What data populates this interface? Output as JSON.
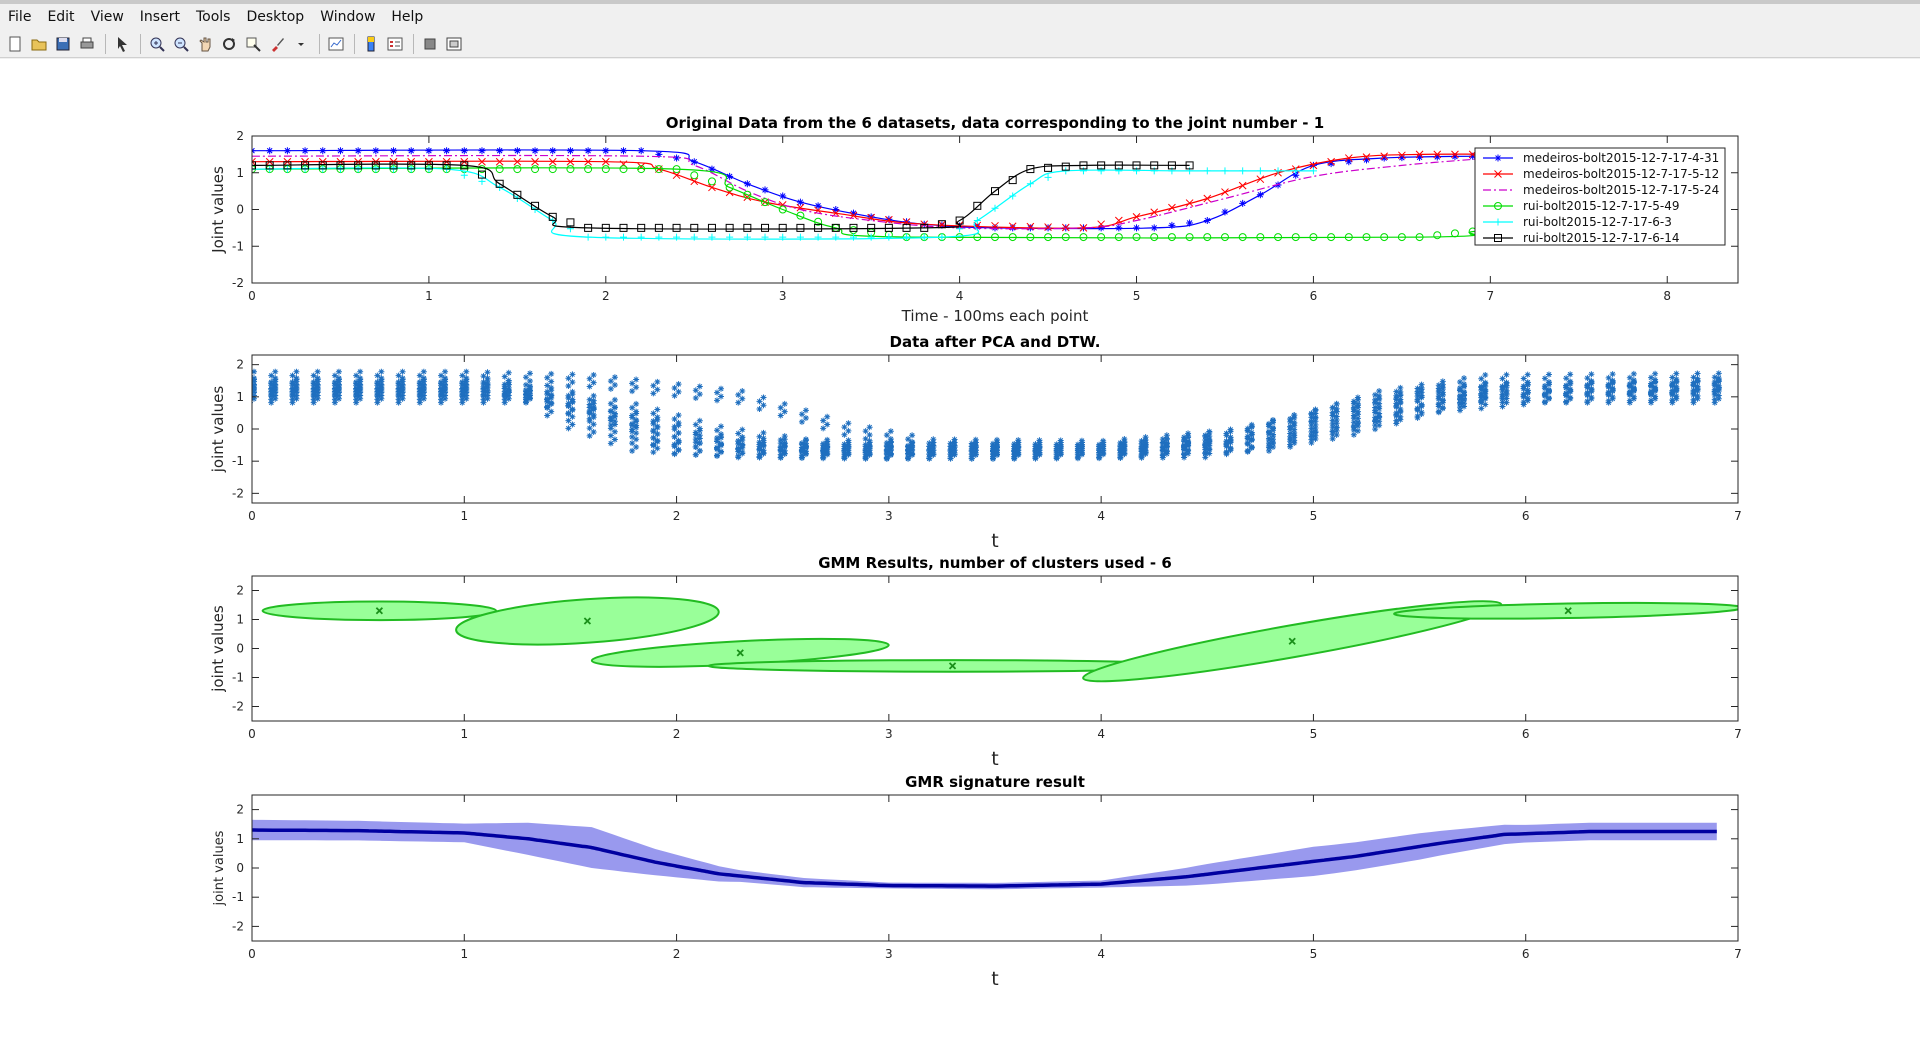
{
  "menu": [
    "File",
    "Edit",
    "View",
    "Insert",
    "Tools",
    "Desktop",
    "Window",
    "Help"
  ],
  "toolbar_icons": [
    "new-figure-icon",
    "open-file-icon",
    "save-icon",
    "print-icon",
    "|",
    "pointer-icon",
    "|",
    "zoom-in-icon",
    "zoom-out-icon",
    "pan-icon",
    "rotate-icon",
    "data-cursor-icon",
    "brush-icon",
    "brush-dropdown-icon",
    "|",
    "link-plot-icon",
    "|",
    "colorbar-icon",
    "legend-icon",
    "|",
    "hide-plot-tools-icon",
    "show-plot-tools-icon"
  ],
  "chart_data": [
    {
      "type": "line",
      "title": "Original Data from the 6 datasets, data corresponding to the joint number -  1",
      "xlabel": "Time - 100ms each point",
      "ylabel": "Joint values",
      "xlim": [
        0,
        8.4
      ],
      "ylim": [
        -2,
        2
      ],
      "xticks": [
        0,
        1,
        2,
        3,
        4,
        5,
        6,
        7,
        8
      ],
      "yticks": [
        -2,
        -1,
        0,
        1,
        2
      ],
      "grid": false,
      "legend": "top-right",
      "series": [
        {
          "name": "medeiros-bolt2015-12-7-17-4-31",
          "color": "#0000ff",
          "marker": "asterisk",
          "dash": "solid",
          "points": [
            [
              0,
              1.6
            ],
            [
              2.2,
              1.6
            ],
            [
              2.5,
              1.3
            ],
            [
              2.8,
              0.7
            ],
            [
              3.1,
              0.2
            ],
            [
              3.5,
              -0.2
            ],
            [
              3.8,
              -0.4
            ],
            [
              4.2,
              -0.5
            ],
            [
              5.1,
              -0.5
            ],
            [
              5.4,
              -0.3
            ],
            [
              5.7,
              0.4
            ],
            [
              6.0,
              1.2
            ],
            [
              6.4,
              1.4
            ],
            [
              6.9,
              1.45
            ]
          ]
        },
        {
          "name": "medeiros-bolt2015-12-7-17-5-12",
          "color": "#ff0000",
          "marker": "x",
          "dash": "solid",
          "points": [
            [
              0,
              1.3
            ],
            [
              2.0,
              1.3
            ],
            [
              2.3,
              1.1
            ],
            [
              2.6,
              0.6
            ],
            [
              2.9,
              0.2
            ],
            [
              3.3,
              -0.1
            ],
            [
              3.8,
              -0.4
            ],
            [
              4.7,
              -0.5
            ],
            [
              5.0,
              -0.2
            ],
            [
              5.4,
              0.3
            ],
            [
              5.8,
              1.0
            ],
            [
              6.2,
              1.4
            ],
            [
              6.6,
              1.5
            ],
            [
              7.3,
              1.5
            ]
          ]
        },
        {
          "name": "medeiros-bolt2015-12-7-17-5-24",
          "color": "#cc00cc",
          "marker": "none",
          "dash": "dashdot",
          "points": [
            [
              0,
              1.45
            ],
            [
              2.2,
              1.45
            ],
            [
              2.5,
              1.2
            ],
            [
              2.8,
              0.5
            ],
            [
              3.1,
              0.0
            ],
            [
              3.5,
              -0.3
            ],
            [
              4.0,
              -0.5
            ],
            [
              4.7,
              -0.5
            ],
            [
              5.0,
              -0.3
            ],
            [
              5.5,
              0.3
            ],
            [
              6.0,
              0.9
            ],
            [
              6.5,
              1.2
            ],
            [
              7.0,
              1.4
            ]
          ]
        },
        {
          "name": "rui-bolt2015-12-7-17-5-49",
          "color": "#00dd00",
          "marker": "circle",
          "dash": "solid",
          "points": [
            [
              0,
              1.1
            ],
            [
              2.4,
              1.1
            ],
            [
              2.7,
              0.6
            ],
            [
              3.0,
              0.0
            ],
            [
              3.3,
              -0.5
            ],
            [
              3.7,
              -0.75
            ],
            [
              6.6,
              -0.75
            ],
            [
              6.9,
              -0.6
            ],
            [
              7.2,
              -0.4
            ]
          ]
        },
        {
          "name": "rui-bolt2015-12-7-17-6-3",
          "color": "#00ffff",
          "marker": "plus",
          "dash": "solid",
          "points": [
            [
              0,
              1.1
            ],
            [
              1.1,
              1.1
            ],
            [
              1.4,
              0.6
            ],
            [
              1.7,
              -0.3
            ],
            [
              1.9,
              -0.75
            ],
            [
              3.9,
              -0.75
            ],
            [
              4.1,
              -0.3
            ],
            [
              4.4,
              0.7
            ],
            [
              4.6,
              1.05
            ],
            [
              5.3,
              1.05
            ],
            [
              6.0,
              1.05
            ]
          ]
        },
        {
          "name": "rui-bolt2015-12-7-17-6-14",
          "color": "#000000",
          "marker": "square",
          "dash": "solid",
          "points": [
            [
              0,
              1.2
            ],
            [
              1.2,
              1.2
            ],
            [
              1.4,
              0.7
            ],
            [
              1.7,
              -0.2
            ],
            [
              1.9,
              -0.5
            ],
            [
              3.8,
              -0.5
            ],
            [
              4.0,
              -0.3
            ],
            [
              4.2,
              0.5
            ],
            [
              4.4,
              1.1
            ],
            [
              4.7,
              1.2
            ],
            [
              5.3,
              1.2
            ]
          ]
        }
      ]
    },
    {
      "type": "scatter",
      "title": "Data after PCA and DTW.",
      "xlabel": "t",
      "ylabel": "joint values",
      "xlim": [
        0,
        7
      ],
      "ylim": [
        -2.3,
        2.3
      ],
      "xticks": [
        0,
        1,
        2,
        3,
        4,
        5,
        6,
        7
      ],
      "yticks": [
        -2,
        -1,
        0,
        1,
        2
      ],
      "grid": false,
      "marker": "asterisk",
      "color": "#1f6fbf",
      "profiles": [
        {
          "points": [
            [
              0,
              1.6
            ],
            [
              1.0,
              1.6
            ],
            [
              1.6,
              1.5
            ],
            [
              2.3,
              1.0
            ],
            [
              2.8,
              0.0
            ],
            [
              3.2,
              -0.5
            ],
            [
              4.0,
              -0.55
            ],
            [
              4.6,
              -0.2
            ],
            [
              5.0,
              0.4
            ],
            [
              5.3,
              1.0
            ],
            [
              5.8,
              1.5
            ],
            [
              6.9,
              1.55
            ]
          ]
        },
        {
          "points": [
            [
              0,
              1.4
            ],
            [
              1.1,
              1.4
            ],
            [
              1.5,
              0.9
            ],
            [
              1.9,
              0.1
            ],
            [
              2.2,
              -0.4
            ],
            [
              2.8,
              -0.6
            ],
            [
              4.0,
              -0.6
            ],
            [
              4.5,
              -0.4
            ],
            [
              5.0,
              0.3
            ],
            [
              5.6,
              1.2
            ],
            [
              6.9,
              1.4
            ]
          ]
        },
        {
          "points": [
            [
              0,
              1.2
            ],
            [
              1.2,
              1.2
            ],
            [
              1.6,
              0.5
            ],
            [
              2.0,
              -0.3
            ],
            [
              2.4,
              -0.6
            ],
            [
              3.0,
              -0.7
            ],
            [
              4.2,
              -0.65
            ],
            [
              4.7,
              -0.5
            ],
            [
              5.1,
              0.1
            ],
            [
              5.5,
              0.8
            ],
            [
              6.0,
              1.2
            ],
            [
              6.9,
              1.3
            ]
          ]
        },
        {
          "points": [
            [
              0,
              1.1
            ],
            [
              1.3,
              1.1
            ],
            [
              1.7,
              0.2
            ],
            [
              2.0,
              -0.6
            ],
            [
              2.5,
              -0.7
            ],
            [
              3.5,
              -0.75
            ],
            [
              4.5,
              -0.7
            ],
            [
              4.9,
              -0.3
            ],
            [
              5.3,
              0.3
            ],
            [
              5.8,
              1.0
            ],
            [
              6.9,
              1.1
            ]
          ]
        },
        {
          "points": [
            [
              0,
              1.0
            ],
            [
              1.3,
              1.0
            ],
            [
              1.5,
              0.2
            ],
            [
              1.8,
              -0.5
            ],
            [
              2.3,
              -0.7
            ],
            [
              3.0,
              -0.75
            ],
            [
              4.1,
              -0.7
            ],
            [
              4.8,
              -0.5
            ],
            [
              5.2,
              0.0
            ],
            [
              5.6,
              0.7
            ],
            [
              6.1,
              1.0
            ],
            [
              6.9,
              1.0
            ]
          ]
        },
        {
          "points": [
            [
              0,
              1.3
            ],
            [
              1.0,
              1.3
            ],
            [
              1.4,
              1.1
            ],
            [
              1.8,
              0.6
            ],
            [
              2.2,
              -0.1
            ],
            [
              2.6,
              -0.5
            ],
            [
              3.2,
              -0.6
            ],
            [
              4.2,
              -0.6
            ],
            [
              4.7,
              -0.1
            ],
            [
              5.1,
              0.6
            ],
            [
              5.5,
              1.1
            ],
            [
              6.9,
              1.35
            ]
          ]
        }
      ],
      "n_samples": 70
    },
    {
      "type": "ellipses",
      "title": "GMM Results, number of clusters used -  6",
      "xlabel": "t",
      "ylabel": "joint values",
      "xlim": [
        0,
        7
      ],
      "ylim": [
        -2.5,
        2.5
      ],
      "xticks": [
        0,
        1,
        2,
        3,
        4,
        5,
        6,
        7
      ],
      "yticks": [
        -2,
        -1,
        0,
        1,
        2
      ],
      "grid": false,
      "fill": "#99ff99",
      "stroke": "#22bb22",
      "clusters": [
        {
          "mean": [
            0.6,
            1.3
          ],
          "rx": 0.55,
          "ry": 0.32,
          "angle": 0
        },
        {
          "mean": [
            1.58,
            0.95
          ],
          "rx": 0.62,
          "ry": 0.75,
          "angle": -4
        },
        {
          "mean": [
            2.3,
            -0.15
          ],
          "rx": 0.7,
          "ry": 0.4,
          "angle": -3
        },
        {
          "mean": [
            3.3,
            -0.6
          ],
          "rx": 1.15,
          "ry": 0.2,
          "angle": 0
        },
        {
          "mean": [
            4.9,
            0.25
          ],
          "rx": 1.0,
          "ry": 0.55,
          "angle": -10
        },
        {
          "mean": [
            6.2,
            1.3
          ],
          "rx": 0.82,
          "ry": 0.25,
          "angle": -1
        }
      ]
    },
    {
      "type": "area",
      "title": "GMR signature result",
      "xlabel": "t",
      "ylabel": "joint values",
      "xlim": [
        0,
        7
      ],
      "ylim": [
        -2.5,
        2.5
      ],
      "xticks": [
        0,
        1,
        2,
        3,
        4,
        5,
        6,
        7
      ],
      "yticks": [
        -2,
        -1,
        0,
        1,
        2
      ],
      "grid": false,
      "line_color": "#0000a0",
      "band_color": "#9999ee",
      "mean": [
        [
          0,
          1.3
        ],
        [
          0.5,
          1.28
        ],
        [
          1.0,
          1.2
        ],
        [
          1.3,
          1.0
        ],
        [
          1.6,
          0.7
        ],
        [
          1.9,
          0.2
        ],
        [
          2.2,
          -0.2
        ],
        [
          2.6,
          -0.5
        ],
        [
          3.0,
          -0.6
        ],
        [
          3.5,
          -0.62
        ],
        [
          4.0,
          -0.55
        ],
        [
          4.4,
          -0.3
        ],
        [
          4.8,
          0.05
        ],
        [
          5.2,
          0.4
        ],
        [
          5.6,
          0.85
        ],
        [
          5.9,
          1.15
        ],
        [
          6.3,
          1.25
        ],
        [
          6.9,
          1.25
        ]
      ],
      "band": [
        [
          0,
          0.35
        ],
        [
          1.0,
          0.32
        ],
        [
          1.3,
          0.55
        ],
        [
          1.6,
          0.7
        ],
        [
          1.9,
          0.45
        ],
        [
          2.3,
          0.2
        ],
        [
          3.0,
          0.1
        ],
        [
          4.0,
          0.12
        ],
        [
          4.5,
          0.35
        ],
        [
          5.0,
          0.5
        ],
        [
          5.5,
          0.45
        ],
        [
          6.0,
          0.3
        ],
        [
          6.9,
          0.3
        ]
      ]
    }
  ]
}
